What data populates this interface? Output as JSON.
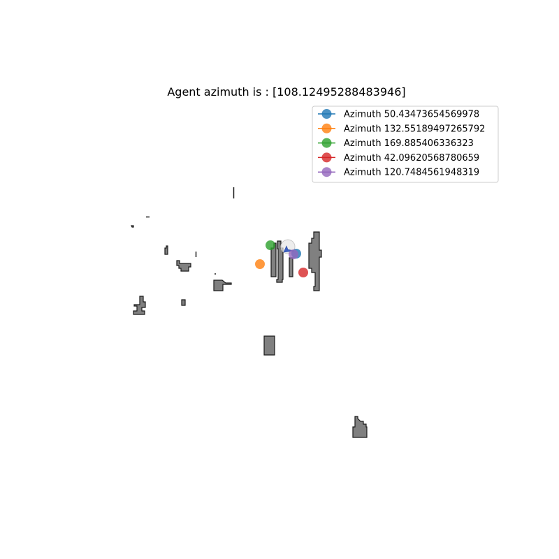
{
  "chart_data": {
    "type": "scatter",
    "title": "Agent azimuth is : [108.12495288483946]",
    "xlabel": "",
    "ylabel": "",
    "grid": false,
    "axes_visible": false,
    "legend_position": "upper-right",
    "agent": {
      "heading": "108.12495288483946",
      "color": "#3b5fc0"
    },
    "series": [
      {
        "name": "Azimuth 50.43473654569978",
        "color": "#1f77b4",
        "x": 424,
        "y": 363
      },
      {
        "name": "Azimuth 132.55189497265792",
        "color": "#ff7f0e",
        "x": 372,
        "y": 378
      },
      {
        "name": "Azimuth 169.885406336323",
        "color": "#2ca02c",
        "x": 387,
        "y": 351
      },
      {
        "name": "Azimuth 42.09620568780659",
        "color": "#d62728",
        "x": 434,
        "y": 390
      },
      {
        "name": "Azimuth 120.7484561948319",
        "color": "#9467bd",
        "x": 420,
        "y": 364
      }
    ],
    "obstacle_fill": "#808080",
    "obstacle_edge": "#1a1a1a"
  }
}
